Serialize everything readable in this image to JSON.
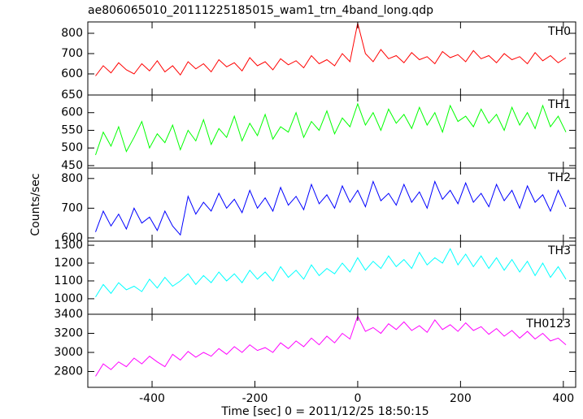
{
  "chart_data": [
    {
      "type": "line",
      "title": "ae806065010_20111225185015_wam1_trn_4band_long.qdp",
      "label": "TH0",
      "color": "#ff0000",
      "xlim": [
        -525,
        424
      ],
      "ylim": [
        496,
        856
      ],
      "yticks": [
        600,
        700,
        800
      ],
      "x": [
        -510,
        -495,
        -480,
        -465,
        -450,
        -435,
        -420,
        -405,
        -390,
        -375,
        -360,
        -345,
        -330,
        -315,
        -300,
        -285,
        -270,
        -255,
        -240,
        -225,
        -210,
        -195,
        -180,
        -165,
        -150,
        -135,
        -120,
        -105,
        -90,
        -75,
        -60,
        -45,
        -30,
        -15,
        0,
        15,
        30,
        45,
        60,
        75,
        90,
        105,
        120,
        135,
        150,
        165,
        180,
        195,
        210,
        225,
        240,
        255,
        270,
        285,
        300,
        315,
        330,
        345,
        360,
        375,
        390,
        405
      ],
      "values": [
        590,
        640,
        605,
        655,
        620,
        600,
        650,
        615,
        665,
        610,
        640,
        595,
        660,
        625,
        650,
        610,
        670,
        635,
        655,
        615,
        680,
        640,
        660,
        620,
        675,
        645,
        665,
        630,
        690,
        650,
        670,
        640,
        700,
        660,
        850,
        700,
        660,
        720,
        675,
        690,
        655,
        705,
        670,
        685,
        650,
        710,
        680,
        695,
        660,
        715,
        675,
        690,
        655,
        700,
        670,
        685,
        650,
        705,
        665,
        690,
        655,
        680
      ]
    },
    {
      "type": "line",
      "label": "TH1",
      "color": "#00ff00",
      "xlim": [
        -525,
        424
      ],
      "ylim": [
        443,
        650
      ],
      "yticks": [
        450,
        500,
        550,
        600,
        650
      ],
      "x": [
        -510,
        -495,
        -480,
        -465,
        -450,
        -435,
        -420,
        -405,
        -390,
        -375,
        -360,
        -345,
        -330,
        -315,
        -300,
        -285,
        -270,
        -255,
        -240,
        -225,
        -210,
        -195,
        -180,
        -165,
        -150,
        -135,
        -120,
        -105,
        -90,
        -75,
        -60,
        -45,
        -30,
        -15,
        0,
        15,
        30,
        45,
        60,
        75,
        90,
        105,
        120,
        135,
        150,
        165,
        180,
        195,
        210,
        225,
        240,
        255,
        270,
        285,
        300,
        315,
        330,
        345,
        360,
        375,
        390,
        405
      ],
      "values": [
        480,
        545,
        505,
        560,
        490,
        530,
        575,
        500,
        540,
        515,
        565,
        495,
        550,
        520,
        580,
        510,
        555,
        530,
        590,
        520,
        570,
        535,
        595,
        525,
        560,
        545,
        600,
        530,
        575,
        550,
        605,
        540,
        585,
        560,
        625,
        565,
        600,
        550,
        610,
        570,
        595,
        555,
        615,
        565,
        600,
        545,
        620,
        575,
        590,
        560,
        610,
        570,
        595,
        550,
        615,
        565,
        600,
        555,
        620,
        560,
        590,
        545
      ]
    },
    {
      "type": "line",
      "label": "TH2",
      "color": "#0000ff",
      "ylabel": "Counts/sec",
      "xlim": [
        -525,
        424
      ],
      "ylim": [
        589,
        835
      ],
      "yticks": [
        600,
        700,
        800
      ],
      "x": [
        -510,
        -495,
        -480,
        -465,
        -450,
        -435,
        -420,
        -405,
        -390,
        -375,
        -360,
        -345,
        -330,
        -315,
        -300,
        -285,
        -270,
        -255,
        -240,
        -225,
        -210,
        -195,
        -180,
        -165,
        -150,
        -135,
        -120,
        -105,
        -90,
        -75,
        -60,
        -45,
        -30,
        -15,
        0,
        15,
        30,
        45,
        60,
        75,
        90,
        105,
        120,
        135,
        150,
        165,
        180,
        195,
        210,
        225,
        240,
        255,
        270,
        285,
        300,
        315,
        330,
        345,
        360,
        375,
        390,
        405
      ],
      "values": [
        620,
        690,
        640,
        680,
        630,
        700,
        650,
        670,
        625,
        690,
        640,
        610,
        740,
        680,
        720,
        690,
        750,
        700,
        730,
        685,
        760,
        700,
        735,
        690,
        770,
        710,
        740,
        695,
        780,
        715,
        745,
        700,
        775,
        720,
        760,
        705,
        790,
        725,
        750,
        710,
        780,
        720,
        755,
        700,
        790,
        730,
        760,
        715,
        785,
        720,
        750,
        705,
        780,
        725,
        760,
        700,
        775,
        720,
        745,
        690,
        760,
        705
      ]
    },
    {
      "type": "line",
      "label": "TH3",
      "color": "#00ffff",
      "xlim": [
        -525,
        424
      ],
      "ylim": [
        913,
        1323
      ],
      "yticks": [
        1000,
        1100,
        1200,
        1300
      ],
      "x": [
        -510,
        -495,
        -480,
        -465,
        -450,
        -435,
        -420,
        -405,
        -390,
        -375,
        -360,
        -345,
        -330,
        -315,
        -300,
        -285,
        -270,
        -255,
        -240,
        -225,
        -210,
        -195,
        -180,
        -165,
        -150,
        -135,
        -120,
        -105,
        -90,
        -75,
        -60,
        -45,
        -30,
        -15,
        0,
        15,
        30,
        45,
        60,
        75,
        90,
        105,
        120,
        135,
        150,
        165,
        180,
        195,
        210,
        225,
        240,
        255,
        270,
        285,
        300,
        315,
        330,
        345,
        360,
        375,
        390,
        405
      ],
      "values": [
        1010,
        1080,
        1030,
        1090,
        1050,
        1070,
        1040,
        1110,
        1060,
        1120,
        1070,
        1100,
        1140,
        1080,
        1130,
        1090,
        1150,
        1100,
        1140,
        1090,
        1160,
        1110,
        1150,
        1100,
        1180,
        1120,
        1160,
        1110,
        1190,
        1130,
        1170,
        1140,
        1200,
        1150,
        1230,
        1160,
        1210,
        1170,
        1240,
        1180,
        1220,
        1170,
        1260,
        1190,
        1230,
        1200,
        1280,
        1190,
        1250,
        1180,
        1240,
        1170,
        1230,
        1160,
        1220,
        1150,
        1210,
        1130,
        1200,
        1120,
        1180,
        1110
      ]
    },
    {
      "type": "line",
      "label": "TH0123",
      "color": "#ff00ff",
      "xlabel": "Time [sec] 0 = 2011/12/25 18:50:15",
      "xlim": [
        -525,
        424
      ],
      "ylim": [
        2634,
        3400
      ],
      "yticks": [
        2800,
        3000,
        3200,
        3400
      ],
      "xticks": [
        -400,
        -200,
        0,
        200,
        400
      ],
      "x": [
        -510,
        -495,
        -480,
        -465,
        -450,
        -435,
        -420,
        -405,
        -390,
        -375,
        -360,
        -345,
        -330,
        -315,
        -300,
        -285,
        -270,
        -255,
        -240,
        -225,
        -210,
        -195,
        -180,
        -165,
        -150,
        -135,
        -120,
        -105,
        -90,
        -75,
        -60,
        -45,
        -30,
        -15,
        0,
        15,
        30,
        45,
        60,
        75,
        90,
        105,
        120,
        135,
        150,
        165,
        180,
        195,
        210,
        225,
        240,
        255,
        270,
        285,
        300,
        315,
        330,
        345,
        360,
        375,
        390,
        405
      ],
      "values": [
        2750,
        2880,
        2820,
        2900,
        2850,
        2940,
        2880,
        2960,
        2900,
        2850,
        2980,
        2920,
        3010,
        2950,
        3000,
        2960,
        3040,
        2980,
        3060,
        3000,
        3080,
        3020,
        3050,
        3000,
        3100,
        3040,
        3120,
        3060,
        3150,
        3080,
        3170,
        3100,
        3200,
        3140,
        3380,
        3220,
        3260,
        3200,
        3300,
        3240,
        3320,
        3230,
        3280,
        3210,
        3340,
        3240,
        3290,
        3220,
        3310,
        3230,
        3270,
        3190,
        3250,
        3170,
        3230,
        3150,
        3220,
        3140,
        3200,
        3120,
        3150,
        3080
      ]
    }
  ]
}
